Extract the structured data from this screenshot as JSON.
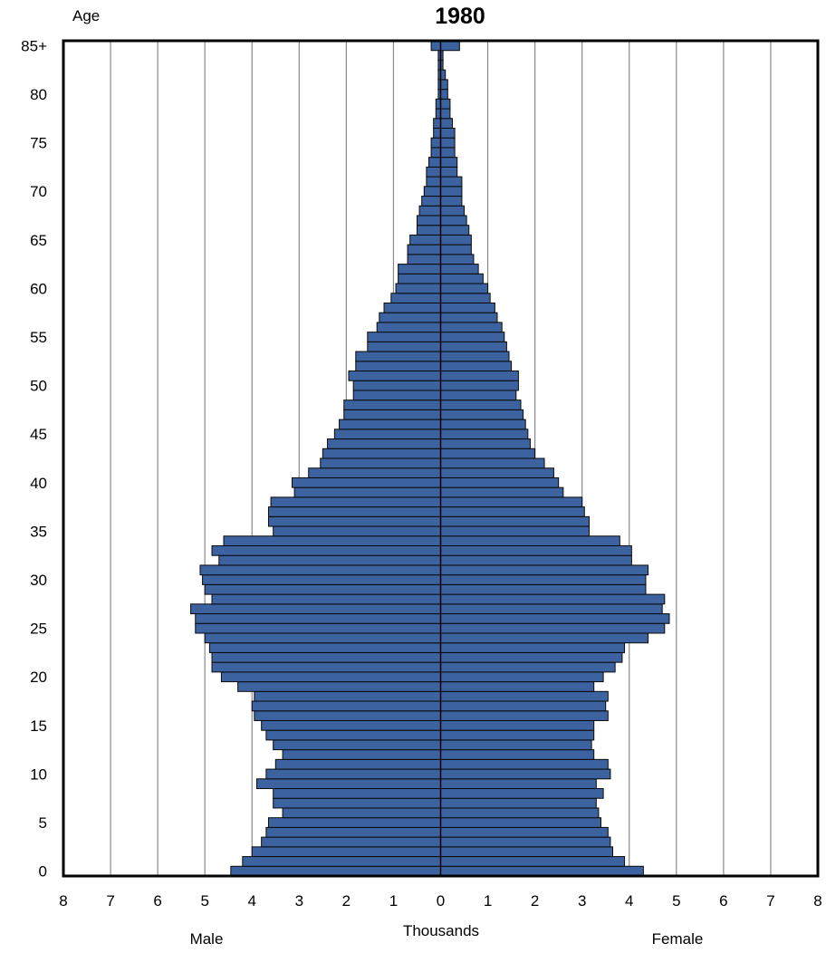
{
  "chart_data": {
    "type": "bar",
    "orientation": "population-pyramid",
    "title": "1980",
    "ylabel": "Age",
    "xlabel": "Thousands",
    "left_label": "Male",
    "right_label": "Female",
    "xlim": [
      -8,
      8
    ],
    "x_tick_labels": [
      "8",
      "7",
      "6",
      "5",
      "4",
      "3",
      "2",
      "1",
      "0",
      "1",
      "2",
      "3",
      "4",
      "5",
      "6",
      "7",
      "8"
    ],
    "y_tick_labels": [
      "0",
      "5",
      "10",
      "15",
      "20",
      "25",
      "30",
      "35",
      "40",
      "45",
      "50",
      "55",
      "60",
      "65",
      "70",
      "75",
      "80",
      "85+"
    ],
    "categories": [
      "0",
      "1",
      "2",
      "3",
      "4",
      "5",
      "6",
      "7",
      "8",
      "9",
      "10",
      "11",
      "12",
      "13",
      "14",
      "15",
      "16",
      "17",
      "18",
      "19",
      "20",
      "21",
      "22",
      "23",
      "24",
      "25",
      "26",
      "27",
      "28",
      "29",
      "30",
      "31",
      "32",
      "33",
      "34",
      "35",
      "36",
      "37",
      "38",
      "39",
      "40",
      "41",
      "42",
      "43",
      "44",
      "45",
      "46",
      "47",
      "48",
      "49",
      "50",
      "51",
      "52",
      "53",
      "54",
      "55",
      "56",
      "57",
      "58",
      "59",
      "60",
      "61",
      "62",
      "63",
      "64",
      "65",
      "66",
      "67",
      "68",
      "69",
      "70",
      "71",
      "72",
      "73",
      "74",
      "75",
      "76",
      "77",
      "78",
      "79",
      "80",
      "81",
      "82",
      "83",
      "84",
      "85+"
    ],
    "series": [
      {
        "name": "Male",
        "values": [
          4.45,
          4.2,
          4.0,
          3.8,
          3.7,
          3.65,
          3.35,
          3.55,
          3.55,
          3.9,
          3.7,
          3.5,
          3.35,
          3.55,
          3.7,
          3.8,
          3.95,
          4.0,
          3.95,
          4.3,
          4.65,
          4.85,
          4.85,
          4.9,
          5.0,
          5.2,
          5.2,
          5.3,
          4.85,
          5.0,
          5.05,
          5.1,
          4.7,
          4.85,
          4.6,
          3.55,
          3.65,
          3.65,
          3.6,
          3.1,
          3.15,
          2.8,
          2.55,
          2.5,
          2.4,
          2.25,
          2.15,
          2.05,
          2.05,
          1.85,
          1.85,
          1.95,
          1.8,
          1.8,
          1.55,
          1.55,
          1.35,
          1.3,
          1.2,
          1.05,
          0.95,
          0.9,
          0.9,
          0.7,
          0.7,
          0.65,
          0.5,
          0.5,
          0.45,
          0.4,
          0.35,
          0.3,
          0.3,
          0.25,
          0.2,
          0.2,
          0.15,
          0.15,
          0.1,
          0.1,
          0.05,
          0.05,
          0.05,
          0.05,
          0.05,
          0.2
        ]
      },
      {
        "name": "Female",
        "values": [
          4.3,
          3.9,
          3.65,
          3.6,
          3.55,
          3.4,
          3.35,
          3.3,
          3.45,
          3.3,
          3.6,
          3.55,
          3.25,
          3.2,
          3.25,
          3.25,
          3.55,
          3.5,
          3.55,
          3.25,
          3.45,
          3.7,
          3.85,
          3.9,
          4.4,
          4.75,
          4.85,
          4.7,
          4.75,
          4.35,
          4.35,
          4.4,
          4.05,
          4.05,
          3.8,
          3.15,
          3.15,
          3.05,
          3.0,
          2.6,
          2.5,
          2.4,
          2.2,
          2.0,
          1.9,
          1.85,
          1.8,
          1.75,
          1.7,
          1.6,
          1.65,
          1.65,
          1.5,
          1.45,
          1.4,
          1.35,
          1.3,
          1.2,
          1.15,
          1.05,
          1.0,
          0.9,
          0.8,
          0.7,
          0.65,
          0.65,
          0.6,
          0.55,
          0.5,
          0.45,
          0.45,
          0.45,
          0.35,
          0.35,
          0.3,
          0.3,
          0.3,
          0.25,
          0.2,
          0.2,
          0.15,
          0.15,
          0.1,
          0.05,
          0.05,
          0.4
        ]
      }
    ],
    "grid": true,
    "colors": {
      "bar": "#3c62a0",
      "outline": "#0a0a0a",
      "grid": "#8a8a8a"
    }
  }
}
